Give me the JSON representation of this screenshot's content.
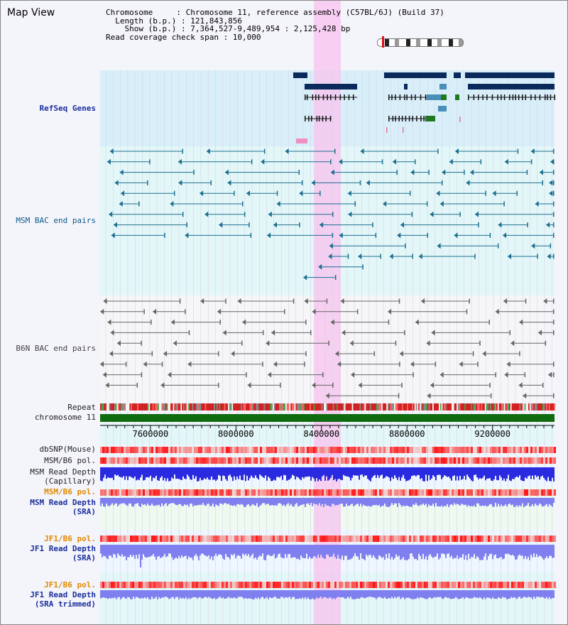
{
  "title": "Map View",
  "header": {
    "lines": [
      "Chromosome     : Chromosome 11, reference assembly (C57BL/6J) (Build 37)",
      "  Length (b.p.) : 121,843,856",
      "    Show (b.p.) : 7,364,527-9,489,954 : 2,125,428 bp",
      "Read coverage check span : 10,000"
    ]
  },
  "tracks": {
    "refseq": "RefSeq Genes",
    "msm_bac": "MSM BAC end pairs",
    "b6n_bac": "B6N BAC end pairs",
    "repeat": "Repeat",
    "chromosome": "chromosome 11",
    "dbsnp": "dbSNP(Mouse)",
    "msm_pol_cap": "MSM/B6 pol.",
    "msm_depth_cap_1": "MSM Read Depth",
    "msm_depth_cap_2": "(Capillary)",
    "msm_pol_sra": "MSM/B6 pol.",
    "msm_depth_sra_1": "MSM Read Depth",
    "msm_depth_sra_2": "(SRA)",
    "jf1_pol_sra": "JF1/B6 pol.",
    "jf1_depth_sra_1": "JF1 Read Depth",
    "jf1_depth_sra_2": "(SRA)",
    "jf1_pol_trim": "JF1/B6 pol.",
    "jf1_depth_trim_1": "JF1 Read Depth",
    "jf1_depth_trim_2": "(SRA trimmed)"
  },
  "axis": {
    "range_bp": [
      7364527,
      9489954
    ],
    "ticks": [
      "7600000",
      "8000000",
      "8400000",
      "8800000",
      "9200000"
    ]
  },
  "highlight_bp": [
    8340000,
    8460000
  ],
  "colors": {
    "refseq_bg": "#d8effa",
    "msm_bg": "#e3f7f8",
    "gene_dark": "#0b2a5c",
    "gene_mid": "#4a8fb8",
    "gene_green": "#1f7a1f",
    "msm_line": "#1c6f90",
    "b6n_line": "#666666",
    "highlight": "#f7c8f0",
    "chromosome_green": "#0f6b0f",
    "depth_blue": "#2a2ae0",
    "depth_light": "#7f7ff0"
  }
}
